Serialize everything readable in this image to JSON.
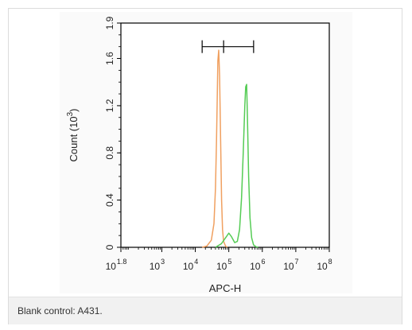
{
  "caption": "Blank control: A431.",
  "chart_data": {
    "type": "line",
    "xscale": "log",
    "xlim": [
      60,
      100000000
    ],
    "ylim": [
      0,
      1.9
    ],
    "xlabel": "APC-H",
    "ylabel": {
      "text": "Count (10",
      "exp": "3",
      "close": ")"
    },
    "y_ticks": [
      {
        "value": 0,
        "label": "0"
      },
      {
        "value": 0.4,
        "label": "0.4"
      },
      {
        "value": 0.8,
        "label": "0.8"
      },
      {
        "value": 1.2,
        "label": "1.2"
      },
      {
        "value": 1.6,
        "label": "1.6"
      },
      {
        "value": 1.9,
        "label": "1.9"
      }
    ],
    "x_ticks": [
      {
        "value": 60,
        "base": "10",
        "exp": "1.8"
      },
      {
        "value": 1000,
        "base": "10",
        "exp": "3"
      },
      {
        "value": 10000,
        "base": "10",
        "exp": "4"
      },
      {
        "value": 100000,
        "base": "10",
        "exp": "5"
      },
      {
        "value": 1000000,
        "base": "10",
        "exp": "6"
      },
      {
        "value": 10000000,
        "base": "10",
        "exp": "7"
      },
      {
        "value": 100000000,
        "base": "10",
        "exp": "8"
      }
    ],
    "gate": {
      "x_start": 16000,
      "x_mid": 70000,
      "x_end": 550000,
      "y": 1.7
    },
    "series": [
      {
        "color": "#f0a060",
        "x": [
          16000,
          22000,
          30000,
          36000,
          40000,
          43000,
          45000,
          47000,
          50000,
          53000,
          57000,
          61000,
          65000,
          70000,
          80000,
          90000
        ],
        "y": [
          0,
          0.01,
          0.06,
          0.2,
          0.5,
          0.9,
          1.25,
          1.58,
          1.67,
          1.45,
          0.9,
          0.4,
          0.15,
          0.05,
          0.01,
          0
        ]
      },
      {
        "color": "#55cc55",
        "x": [
          40000,
          60000,
          80000,
          100000,
          120000,
          150000,
          180000,
          210000,
          240000,
          270000,
          300000,
          320000,
          340000,
          360000,
          390000,
          430000,
          480000,
          550000,
          650000,
          750000
        ],
        "y": [
          0,
          0.03,
          0.08,
          0.12,
          0.09,
          0.04,
          0.05,
          0.15,
          0.42,
          0.8,
          1.2,
          1.36,
          1.38,
          1.1,
          0.6,
          0.25,
          0.08,
          0.02,
          0.005,
          0
        ]
      }
    ]
  }
}
